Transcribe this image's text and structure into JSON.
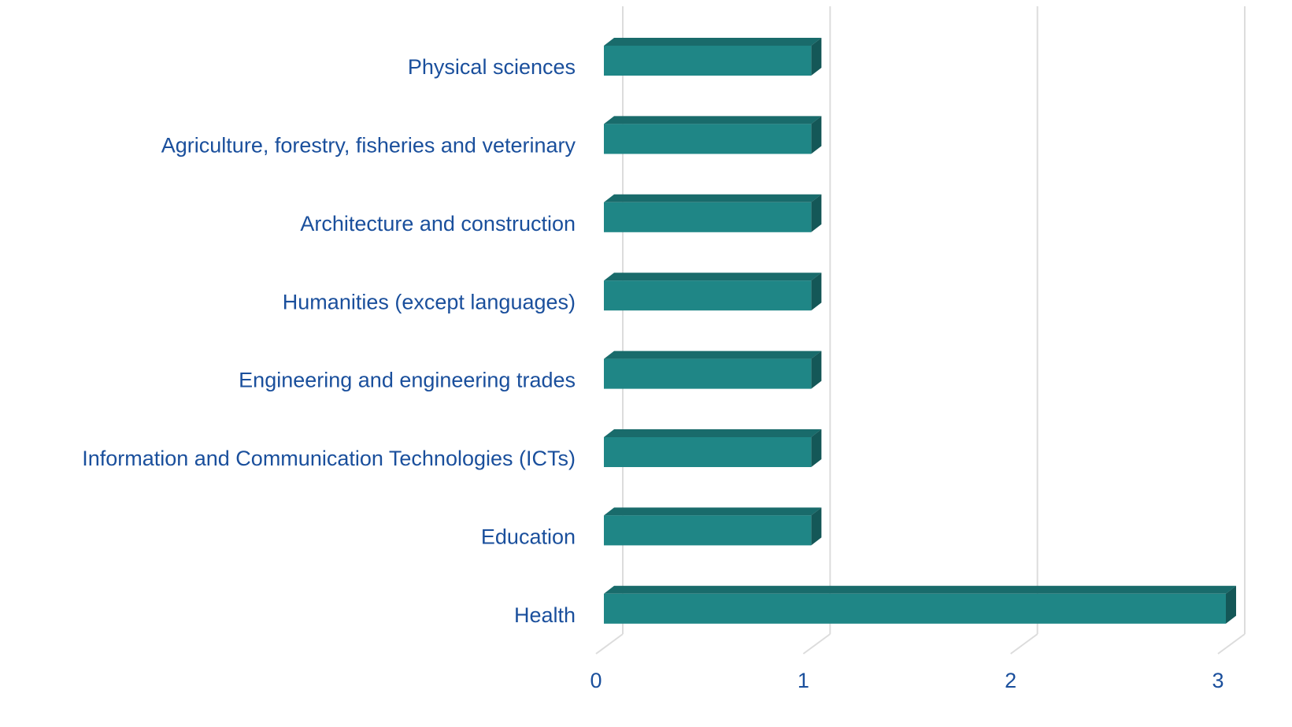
{
  "chart_data": {
    "type": "bar3d_horizontal",
    "categories": [
      "Physical sciences",
      "Agriculture, forestry, fisheries and veterinary",
      "Architecture and construction",
      "Humanities (except languages)",
      "Engineering and engineering trades",
      "Information and Communication Technologies (ICTs)",
      "Education",
      "Health"
    ],
    "values": [
      1,
      1,
      1,
      1,
      1,
      1,
      1,
      3
    ],
    "color": "#1f8686",
    "xlim": [
      0,
      3
    ],
    "xticks": [
      0,
      1,
      2,
      3
    ],
    "grid": true
  }
}
